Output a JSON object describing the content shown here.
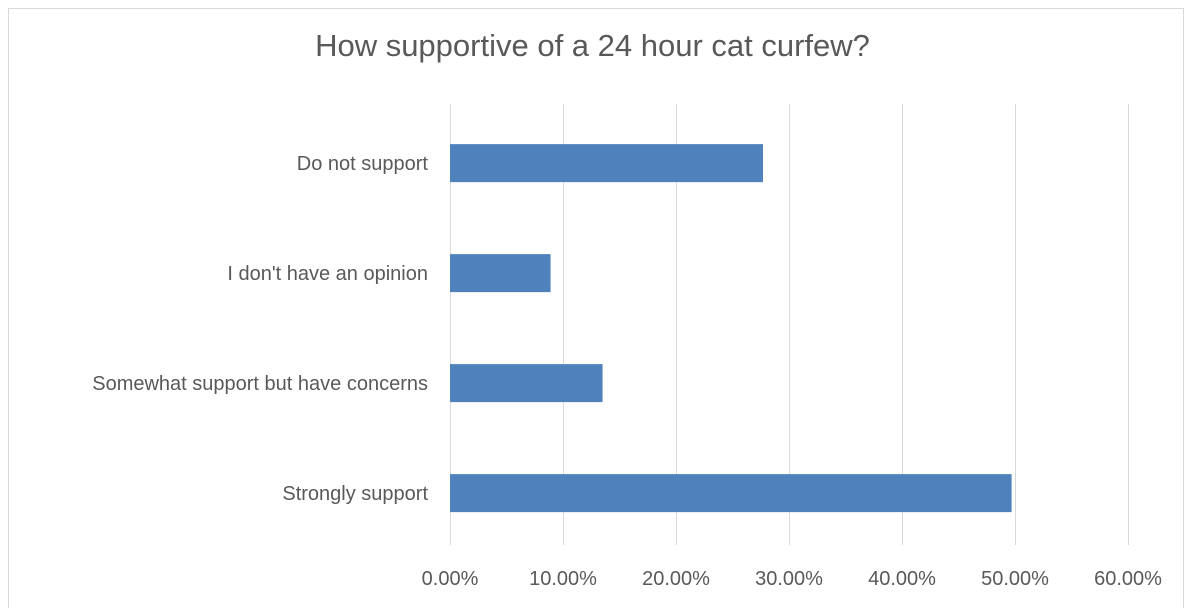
{
  "chart_data": {
    "type": "bar",
    "orientation": "horizontal",
    "title": "How supportive of a 24 hour cat curfew?",
    "categories": [
      "Do not support",
      "I don't have an opinion",
      "Somewhat support but have concerns",
      "Strongly support"
    ],
    "values": [
      27.7,
      8.9,
      13.5,
      49.7
    ],
    "xlim": [
      0,
      60
    ],
    "x_ticks": [
      "0.00%",
      "10.00%",
      "20.00%",
      "30.00%",
      "40.00%",
      "50.00%",
      "60.00%"
    ],
    "grid": true,
    "legend": "none",
    "bar_color": "#4f81bd",
    "gridline_color": "#d9d9d9",
    "text_color": "#595959"
  }
}
